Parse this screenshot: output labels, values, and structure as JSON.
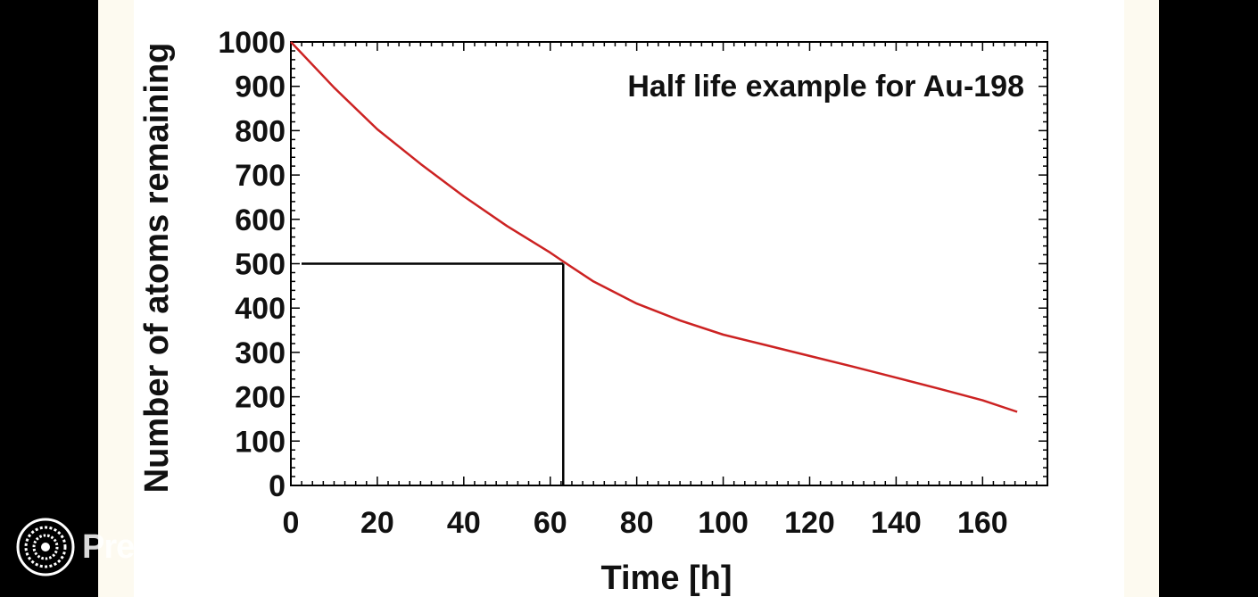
{
  "brand": {
    "name": "Prezi"
  },
  "chart_data": {
    "type": "line",
    "title": "Half life example for Au-198",
    "xlabel": "Time [h]",
    "ylabel": "Number of atoms remaining",
    "xlim": [
      0,
      175
    ],
    "ylim": [
      0,
      1000
    ],
    "x_ticks": [
      0,
      20,
      40,
      60,
      80,
      100,
      120,
      140,
      160
    ],
    "y_ticks": [
      0,
      100,
      200,
      300,
      400,
      500,
      600,
      700,
      800,
      900,
      1000
    ],
    "grid": false,
    "line_color": "#cc2222",
    "series": [
      {
        "x": [
          0,
          10,
          20,
          30,
          40,
          50,
          60,
          63,
          70,
          80,
          90,
          100,
          110,
          120,
          130,
          140,
          150,
          160,
          168
        ],
        "values": [
          1000,
          897,
          803,
          725,
          652,
          585,
          525,
          505,
          460,
          410,
          372,
          340,
          316,
          292,
          268,
          243,
          218,
          192,
          166
        ]
      }
    ],
    "annotation": {
      "half_life_x": 63,
      "half_value": 500
    }
  }
}
